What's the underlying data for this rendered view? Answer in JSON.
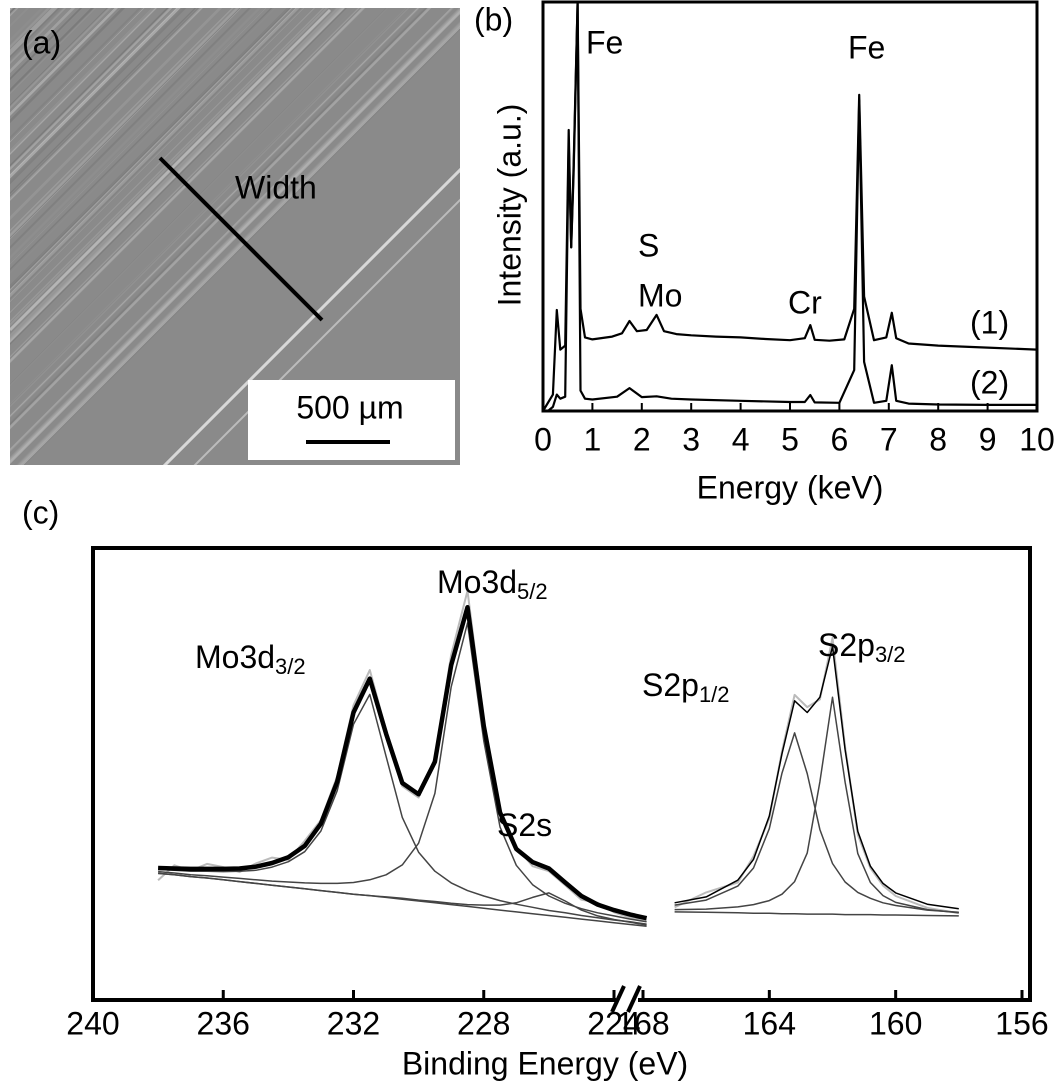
{
  "chart_data": [
    {
      "type": "image",
      "label": "(a)",
      "annotations": [
        "Width"
      ],
      "scale_bar": "500 µm"
    },
    {
      "type": "line",
      "label": "(b)",
      "x_label": "Energy (keV)",
      "y_label": "Intensity (a.u.)",
      "xlim": [
        0,
        10
      ],
      "xticks": [
        0,
        1,
        2,
        3,
        4,
        5,
        6,
        7,
        8,
        9,
        10
      ],
      "ylim": [
        0,
        100
      ],
      "annotations": [
        "Fe",
        "Fe",
        "S",
        "Mo",
        "Cr"
      ],
      "series": [
        {
          "name": "(1)",
          "color": "#000000",
          "x": [
            0,
            0.2,
            0.28,
            0.35,
            0.45,
            0.52,
            0.57,
            0.62,
            0.7,
            0.76,
            0.85,
            1.0,
            1.4,
            1.6,
            1.75,
            1.9,
            2.1,
            2.3,
            2.45,
            2.7,
            3.0,
            3.5,
            4.0,
            4.5,
            5.0,
            5.3,
            5.41,
            5.5,
            5.8,
            6.1,
            6.3,
            6.4,
            6.5,
            6.7,
            6.95,
            7.06,
            7.15,
            7.4,
            8,
            9,
            10
          ],
          "values": [
            0,
            4,
            24.7,
            15,
            16,
            68.7,
            40,
            60,
            100,
            25,
            18,
            17.5,
            18.2,
            19,
            22,
            19.5,
            19.8,
            23.5,
            19.5,
            18.8,
            18.5,
            18.2,
            18,
            17.6,
            17.3,
            17.8,
            21,
            17.4,
            17.2,
            17.5,
            25,
            77.3,
            28,
            17.3,
            18,
            24,
            17.8,
            16.5,
            16,
            15.5,
            15
          ]
        },
        {
          "name": "(2)",
          "color": "#000000",
          "x": [
            0.1,
            0.2,
            0.28,
            0.35,
            0.45,
            0.52,
            0.57,
            0.62,
            0.7,
            0.76,
            0.85,
            1.0,
            1.5,
            1.75,
            2.0,
            2.3,
            2.6,
            3,
            4,
            5,
            5.3,
            5.41,
            5.5,
            6.0,
            6.3,
            6.4,
            6.5,
            6.7,
            6.95,
            7.06,
            7.15,
            7.4,
            8,
            9,
            10
          ],
          "values": [
            0,
            1,
            4,
            3,
            3.5,
            66,
            40,
            58,
            100,
            5,
            3,
            2.8,
            3.5,
            5.6,
            3.4,
            3.6,
            3,
            2.8,
            2.5,
            2.2,
            2.2,
            3.9,
            2.1,
            2,
            10,
            76,
            12,
            2,
            2.5,
            11.2,
            2.5,
            1.8,
            1.6,
            1.5,
            1.5
          ]
        }
      ]
    },
    {
      "type": "broken_line",
      "label": "(c)",
      "x_label": "Binding Energy (eV)",
      "ylim": [
        0,
        100
      ],
      "annotations": [
        {
          "text": "Mo3d",
          "sub": "3/2"
        },
        {
          "text": "Mo3d",
          "sub": "5/2"
        },
        {
          "text": "S2s"
        },
        {
          "text": "S2p",
          "sub": "1/2"
        },
        {
          "text": "S2p",
          "sub": "3/2"
        }
      ],
      "segments": [
        {
          "xlim": [
            240,
            224
          ],
          "xticks": [
            240,
            236,
            232,
            228,
            224
          ],
          "x": [
            238,
            237.5,
            237,
            236.5,
            236,
            235.5,
            235,
            234.5,
            234,
            233.5,
            233,
            232.5,
            232,
            231.5,
            231,
            230.5,
            230,
            229.5,
            229,
            228.5,
            228,
            227.5,
            227,
            226.5,
            226,
            225.5,
            225,
            224.5,
            224,
            223.5,
            223
          ],
          "series": [
            {
              "color": "#bbbbbb",
              "values": [
                26.5,
                29.8,
                28.6,
                30.1,
                29.4,
                28.3,
                30.2,
                31.5,
                31.0,
                35.2,
                39.8,
                49.5,
                65.2,
                73.0,
                59.6,
                47.3,
                44.8,
                53.6,
                76.4,
                90.5,
                61.9,
                40.8,
                33.9,
                29.6,
                28.5,
                25.4,
                22.2,
                21.5,
                19.4,
                18.2,
                17.6
              ]
            },
            {
              "color": "#444444",
              "values": [
                28,
                27.7,
                27.3,
                27,
                26.6,
                26.2,
                25.8,
                25.4,
                25,
                24.6,
                24.2,
                23.8,
                23.4,
                23.1,
                22.7,
                22.3,
                21.9,
                21.5,
                21.1,
                20.7,
                20.3,
                19.9,
                19.5,
                19.1,
                18.7,
                18.3,
                17.9,
                17.5,
                17.1,
                16.7,
                16.3
              ]
            },
            {
              "color": "#444444",
              "values": [
                28.9,
                28.7,
                28.5,
                28.5,
                28.4,
                28.5,
                28.7,
                29.4,
                30.6,
                32.8,
                37.4,
                46.3,
                61.0,
                67.6,
                53.9,
                40.4,
                32.7,
                28.5,
                25.9,
                24.2,
                23.0,
                22.0,
                21.2,
                20.5,
                19.8,
                19.3,
                18.7,
                18.2,
                17.7,
                17.3,
                16.8
              ]
            },
            {
              "color": "#444444",
              "values": [
                28.4,
                28.1,
                27.7,
                27.5,
                27.2,
                26.9,
                26.6,
                26.3,
                26.1,
                25.9,
                25.8,
                25.8,
                26.0,
                26.6,
                27.7,
                29.9,
                34.7,
                45.7,
                69.3,
                83.4,
                57.3,
                38.3,
                29.8,
                25.5,
                23.0,
                21.4,
                20.2,
                19.3,
                18.6,
                17.9,
                17.3
              ]
            },
            {
              "color": "#444444",
              "values": [
                28.0,
                27.7,
                27.3,
                27.0,
                26.6,
                26.2,
                25.8,
                25.4,
                25.0,
                24.6,
                24.2,
                23.8,
                23.4,
                23.1,
                22.8,
                22.5,
                22.1,
                21.8,
                21.4,
                21.1,
                21.0,
                21.0,
                21.5,
                22.7,
                23.7,
                21.9,
                19.9,
                18.6,
                17.8,
                17.2,
                16.6
              ]
            },
            {
              "color": "#000000",
              "values": [
                29.2,
                29.1,
                29.0,
                29.0,
                29.0,
                29.1,
                29.5,
                30.3,
                31.6,
                34.1,
                39.0,
                48.3,
                63.6,
                71.1,
                58.9,
                48.0,
                45.5,
                52.7,
                74.1,
                86.9,
                60.6,
                41.5,
                33.4,
                30.5,
                29.1,
                26.0,
                23.0,
                21.1,
                19.9,
                18.9,
                18.1
              ]
            }
          ]
        },
        {
          "xlim": [
            168,
            156
          ],
          "xticks": [
            168,
            164,
            160,
            156
          ],
          "x": [
            167,
            166,
            165,
            164.5,
            164,
            163.6,
            163.2,
            162.8,
            162.4,
            162,
            161.6,
            161.2,
            160.8,
            160.4,
            160,
            159,
            158
          ],
          "series": [
            {
              "color": "#bbbbbb",
              "values": [
                20.5,
                23.8,
                26.0,
                31.8,
                40.2,
                55.0,
                67.5,
                64.8,
                66.5,
                80.1,
                56.0,
                36.6,
                29.2,
                25.3,
                23.0,
                20.4,
                19.2
              ]
            },
            {
              "color": "#444444",
              "values": [
                19.5,
                19.4,
                19.3,
                19.2,
                19.2,
                19.1,
                19.1,
                19.0,
                19.0,
                19.0,
                18.9,
                18.9,
                18.9,
                18.8,
                18.8,
                18.7,
                18.6
              ]
            },
            {
              "color": "#444444",
              "values": [
                21.0,
                22.1,
                25.2,
                29.2,
                37.9,
                50.2,
                59.1,
                50.1,
                37.7,
                30.2,
                26.1,
                23.8,
                22.5,
                21.5,
                20.9,
                19.9,
                19.4
              ]
            },
            {
              "color": "#444444",
              "values": [
                20.0,
                20.1,
                20.6,
                21.1,
                22.0,
                23.4,
                26.2,
                32.5,
                48.3,
                67.0,
                48.2,
                32.4,
                26.0,
                23.1,
                21.6,
                20.0,
                19.3
              ]
            },
            {
              "color": "#000000",
              "values": [
                21.5,
                22.8,
                26.5,
                31.1,
                40.7,
                54.5,
                66.2,
                63.6,
                67.0,
                78.2,
                55.4,
                37.3,
                29.6,
                25.8,
                23.7,
                21.2,
                20.2
              ]
            }
          ]
        }
      ]
    }
  ]
}
